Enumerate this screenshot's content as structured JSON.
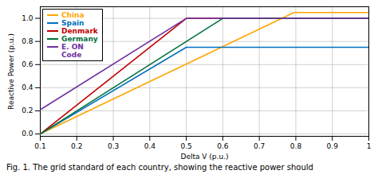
{
  "chart_data": {
    "type": "line",
    "xlabel": "Delta V (p.u.)",
    "ylabel": "Reactive Power (p.u.)",
    "xlim": [
      0.1,
      1.0
    ],
    "ylim": [
      -0.02,
      1.1
    ],
    "xticks": [
      0.1,
      0.2,
      0.3,
      0.4,
      0.5,
      0.6,
      0.7,
      0.8,
      0.9,
      1
    ],
    "yticks": [
      {
        "value": 0,
        "label": "0.0"
      },
      0.2,
      0.4,
      0.6,
      0.8,
      {
        "value": 1.0,
        "label": "1.0"
      }
    ],
    "series": [
      {
        "name": "China",
        "color": "#FFA500",
        "x": [
          0.1,
          0.795,
          1.0
        ],
        "values": [
          0.0,
          1.05,
          1.05
        ]
      },
      {
        "name": "Spain",
        "color": "#0070C0",
        "x": [
          0.1,
          0.5,
          1.0
        ],
        "values": [
          0.0,
          0.75,
          0.75
        ]
      },
      {
        "name": "Denmark",
        "color": "#C00000",
        "x": [
          0.1,
          0.5,
          1.0
        ],
        "values": [
          0.0,
          1.0,
          1.0
        ]
      },
      {
        "name": "Germany",
        "color": "#00703C",
        "x": [
          0.1,
          0.6,
          1.0
        ],
        "values": [
          0.0,
          1.0,
          1.0
        ]
      },
      {
        "name": "E. ON\nCode",
        "color": "#7030A0",
        "x": [
          0.1,
          0.5,
          1.0
        ],
        "values": [
          0.21,
          1.0,
          1.0
        ]
      }
    ],
    "caption": "Fig. 1.  The grid standard of each country, showing the reactive power should",
    "grid": true,
    "legend": "upper left"
  }
}
